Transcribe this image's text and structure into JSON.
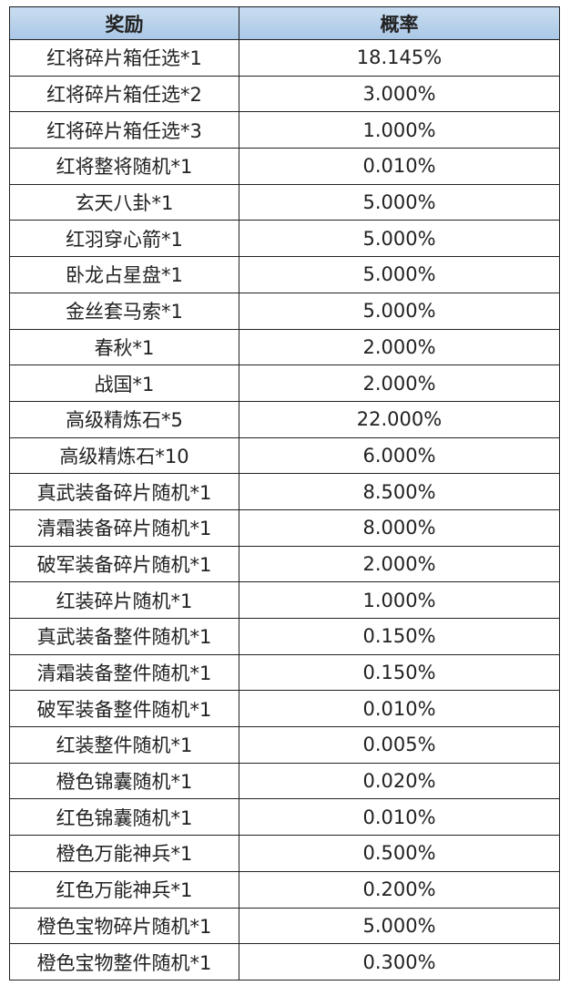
{
  "table": {
    "headers": [
      "奖励",
      "概率"
    ],
    "rows": [
      [
        "红将碎片箱任选*1",
        "18.145%"
      ],
      [
        "红将碎片箱任选*2",
        "3.000%"
      ],
      [
        "红将碎片箱任选*3",
        "1.000%"
      ],
      [
        "红将整将随机*1",
        "0.010%"
      ],
      [
        "玄天八卦*1",
        "5.000%"
      ],
      [
        "红羽穿心箭*1",
        "5.000%"
      ],
      [
        "卧龙占星盘*1",
        "5.000%"
      ],
      [
        "金丝套马索*1",
        "5.000%"
      ],
      [
        "春秋*1",
        "2.000%"
      ],
      [
        "战国*1",
        "2.000%"
      ],
      [
        "高级精炼石*5",
        "22.000%"
      ],
      [
        "高级精炼石*10",
        "6.000%"
      ],
      [
        "真武装备碎片随机*1",
        "8.500%"
      ],
      [
        "清霜装备碎片随机*1",
        "8.000%"
      ],
      [
        "破军装备碎片随机*1",
        "2.000%"
      ],
      [
        "红装碎片随机*1",
        "1.000%"
      ],
      [
        "真武装备整件随机*1",
        "0.150%"
      ],
      [
        "清霜装备整件随机*1",
        "0.150%"
      ],
      [
        "破军装备整件随机*1",
        "0.010%"
      ],
      [
        "红装整件随机*1",
        "0.005%"
      ],
      [
        "橙色锦囊随机*1",
        "0.020%"
      ],
      [
        "红色锦囊随机*1",
        "0.010%"
      ],
      [
        "橙色万能神兵*1",
        "0.500%"
      ],
      [
        "红色万能神兵*1",
        "0.200%"
      ],
      [
        "橙色宝物碎片随机*1",
        "5.000%"
      ],
      [
        "橙色宝物整件随机*1",
        "0.300%"
      ]
    ]
  },
  "colors": {
    "header_bg": "#b9d3ec",
    "border": "#222222"
  }
}
